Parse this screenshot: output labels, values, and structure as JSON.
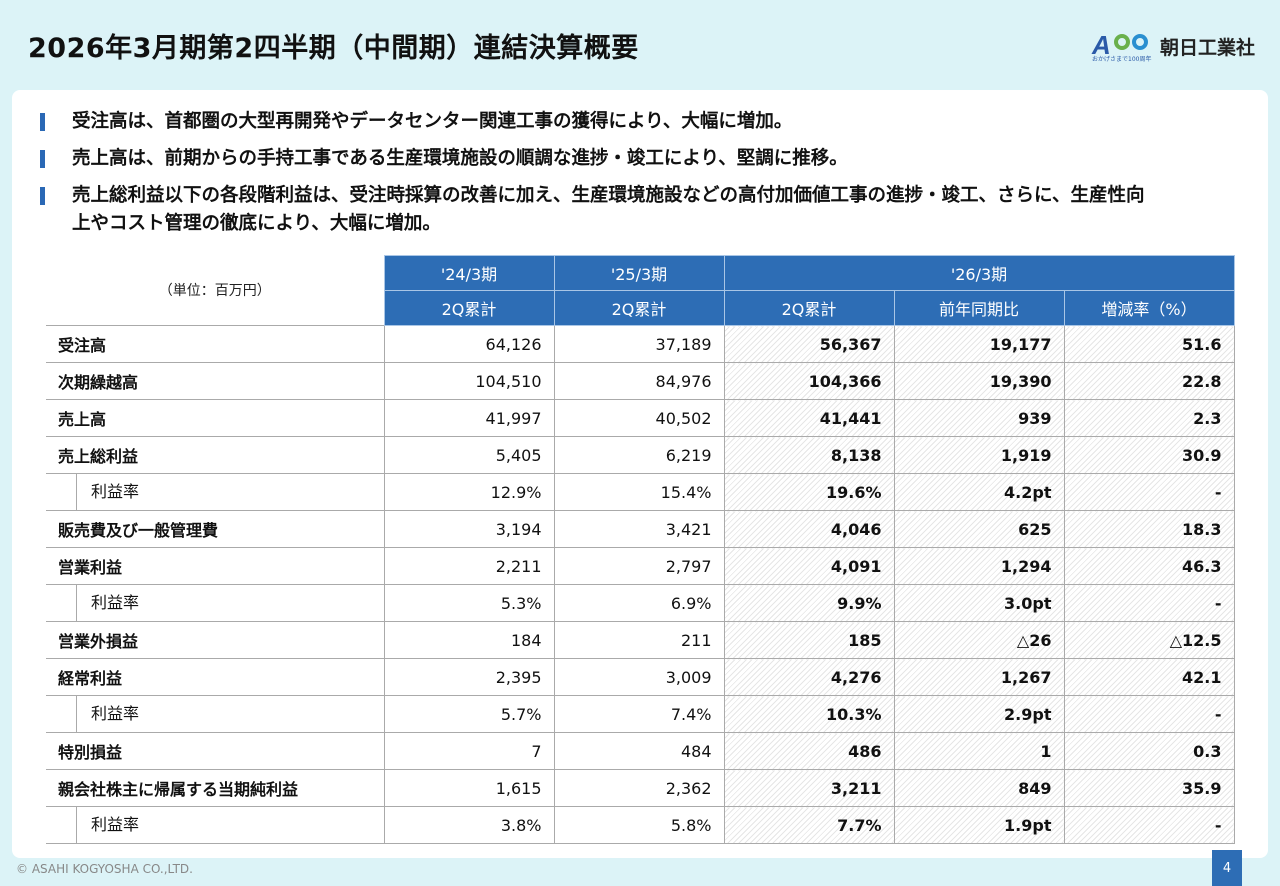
{
  "title": "2026年3月期第2四半期（中間期）連結決算概要",
  "logo": {
    "company": "朝日工業社",
    "tagline": "おかげさまで100周年",
    "mark": "100 Anniversary"
  },
  "bullets": [
    "受注高は、首都圏の大型再開発やデータセンター関連工事の獲得により、大幅に増加。",
    "売上高は、前期からの手持工事である生産環境施設の順調な進捗・竣工により、堅調に推移。",
    "売上総利益以下の各段階利益は、受注時採算の改善に加え、生産環境施設などの高付加価値工事の進捗・竣工、さらに、生産性向上やコスト管理の徹底により、大幅に増加。"
  ],
  "table": {
    "unit": "（単位：百万円）",
    "periods": [
      "'24/3期",
      "'25/3期",
      "'26/3期"
    ],
    "subheaders": [
      "2Q累計",
      "2Q累計",
      "2Q累計",
      "前年同期比",
      "増減率（%）"
    ],
    "rows": [
      {
        "label": "受注高",
        "sub": false,
        "values": [
          "64,126",
          "37,189",
          "56,367",
          "19,177",
          "51.6"
        ]
      },
      {
        "label": "次期繰越高",
        "sub": false,
        "values": [
          "104,510",
          "84,976",
          "104,366",
          "19,390",
          "22.8"
        ]
      },
      {
        "label": "売上高",
        "sub": false,
        "values": [
          "41,997",
          "40,502",
          "41,441",
          "939",
          "2.3"
        ]
      },
      {
        "label": "売上総利益",
        "sub": false,
        "values": [
          "5,405",
          "6,219",
          "8,138",
          "1,919",
          "30.9"
        ]
      },
      {
        "label": "利益率",
        "sub": true,
        "values": [
          "12.9%",
          "15.4%",
          "19.6%",
          "4.2pt",
          "-"
        ]
      },
      {
        "label": "販売費及び一般管理費",
        "sub": false,
        "values": [
          "3,194",
          "3,421",
          "4,046",
          "625",
          "18.3"
        ]
      },
      {
        "label": "営業利益",
        "sub": false,
        "values": [
          "2,211",
          "2,797",
          "4,091",
          "1,294",
          "46.3"
        ]
      },
      {
        "label": "利益率",
        "sub": true,
        "values": [
          "5.3%",
          "6.9%",
          "9.9%",
          "3.0pt",
          "-"
        ]
      },
      {
        "label": "営業外損益",
        "sub": false,
        "values": [
          "184",
          "211",
          "185",
          "△26",
          "△12.5"
        ]
      },
      {
        "label": "経常利益",
        "sub": false,
        "values": [
          "2,395",
          "3,009",
          "4,276",
          "1,267",
          "42.1"
        ]
      },
      {
        "label": "利益率",
        "sub": true,
        "values": [
          "5.7%",
          "7.4%",
          "10.3%",
          "2.9pt",
          "-"
        ]
      },
      {
        "label": "特別損益",
        "sub": false,
        "values": [
          "7",
          "484",
          "486",
          "1",
          "0.3"
        ]
      },
      {
        "label": "親会社株主に帰属する当期純利益",
        "sub": false,
        "values": [
          "1,615",
          "2,362",
          "3,211",
          "849",
          "35.9"
        ]
      },
      {
        "label": "利益率",
        "sub": true,
        "values": [
          "3.8%",
          "5.8%",
          "7.7%",
          "1.9pt",
          "-"
        ]
      }
    ]
  },
  "footer": {
    "copyright": "© ASAHI KOGYOSHA CO.,LTD.",
    "page": "4"
  },
  "colors": {
    "accent": "#2d6db5",
    "background": "#dcf3f7"
  }
}
